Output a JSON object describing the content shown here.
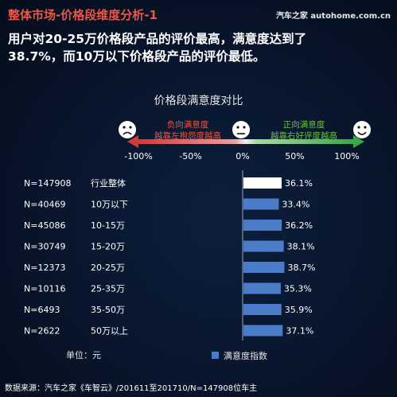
{
  "header": {
    "title": "整体市场-价格段维度分析-1",
    "watermark": "汽车之家 autohome.com.cn"
  },
  "headline": {
    "line1": "用户对20-25万价格段产品的评价最高，满意度达到了",
    "line2": "38.7%，而10万以下价格段产品的评价最低。"
  },
  "chart_data": {
    "type": "bar",
    "title": "价格段满意度对比",
    "scale": {
      "ticks": [
        "-100%",
        "-50%",
        "0%",
        "50%",
        "100%"
      ],
      "values": [
        -100,
        -50,
        0,
        50,
        100
      ],
      "negative_label_line1": "负向满意度",
      "negative_label_line2": "越靠左抱怨度越高",
      "positive_label_line1": "正向满意度",
      "positive_label_line2": "越靠右好评度越高"
    },
    "categories": [
      {
        "sample": "N=147908",
        "segment": "行业整体"
      },
      {
        "sample": "N=40469",
        "segment": "10万以下"
      },
      {
        "sample": "N=45086",
        "segment": "10-15万"
      },
      {
        "sample": "N=30749",
        "segment": "15-20万"
      },
      {
        "sample": "N=12373",
        "segment": "20-25万"
      },
      {
        "sample": "N=10116",
        "segment": "25-35万"
      },
      {
        "sample": "N=6493",
        "segment": "35-50万"
      },
      {
        "sample": "N=2622",
        "segment": "50万以上"
      }
    ],
    "values": [
      36.1,
      33.4,
      36.2,
      38.1,
      38.7,
      35.3,
      35.9,
      37.1
    ],
    "value_labels": [
      "36.1%",
      "33.4%",
      "36.2%",
      "38.1%",
      "38.7%",
      "35.3%",
      "35.9%",
      "37.1%"
    ],
    "xlim": [
      0,
      50
    ],
    "highlight_color": "#ffffff",
    "bar_color": "#4a7cc9",
    "unit_label": "单位：元",
    "legend": "满意度指数",
    "legend_position": "bottom-right"
  },
  "footer": {
    "source": "数据来源：汽车之家《车智云》/201611至201710/N=147908位车主"
  }
}
